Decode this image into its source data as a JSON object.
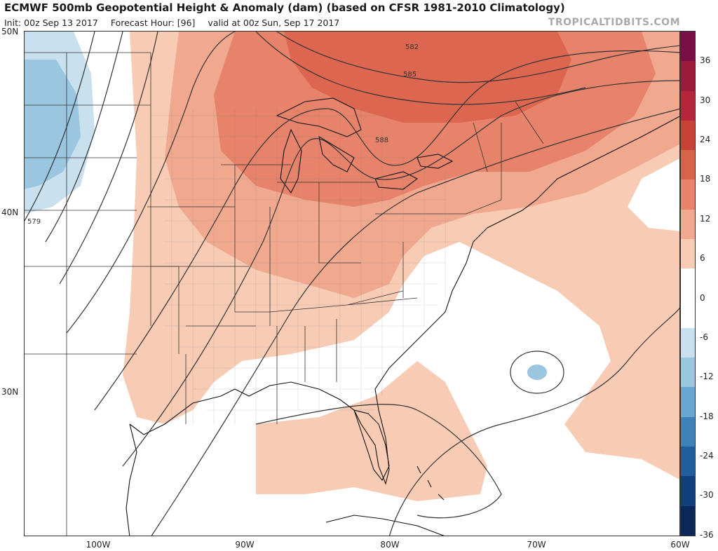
{
  "header": {
    "title": "ECMWF 500mb Geopotential Height & Anomaly (dam) (based on CFSR 1981-2010 Climatology)",
    "init": "Init: 00z Sep 13 2017",
    "forecast_hour": "Forecast Hour: [96]",
    "valid": "valid at 00z Sun, Sep 17 2017",
    "brand": "TROPICALTIDBITS.COM"
  },
  "axes": {
    "lat_labels": [
      "50N",
      "40N",
      "30N"
    ],
    "lon_labels": [
      "100W",
      "90W",
      "80W",
      "70W",
      "60W"
    ]
  },
  "contours": {
    "labels": [
      "582",
      "585",
      "588",
      "579"
    ]
  },
  "colorbar": {
    "ticks": [
      "36",
      "30",
      "24",
      "18",
      "12",
      "6",
      "0",
      "-6",
      "-12",
      "-18",
      "-24",
      "-30",
      "-36"
    ],
    "colors": [
      "#7a0f47",
      "#9c1a3c",
      "#b6253a",
      "#c94237",
      "#d9624a",
      "#e6836a",
      "#f0a88f",
      "#f8cbb5",
      "#ffffff",
      "#ffffff",
      "#c9e0ee",
      "#9bc6e0",
      "#6aa6cf",
      "#3f82b8",
      "#235e9c",
      "#12407c",
      "#0b2858"
    ]
  }
}
